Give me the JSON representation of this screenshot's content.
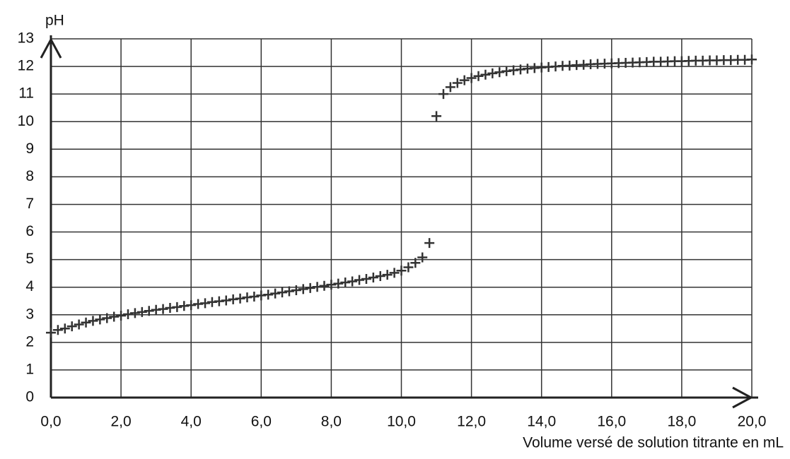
{
  "chart_data": {
    "type": "scatter",
    "y_label": "pH",
    "x_label": "Volume versé de solution titrante en mL",
    "x": [
      0.0,
      0.2,
      0.4,
      0.6,
      0.8,
      1.0,
      1.2,
      1.4,
      1.6,
      1.8,
      2.0,
      2.2,
      2.4,
      2.6,
      2.8,
      3.0,
      3.2,
      3.4,
      3.6,
      3.8,
      4.0,
      4.2,
      4.4,
      4.6,
      4.8,
      5.0,
      5.2,
      5.4,
      5.6,
      5.8,
      6.0,
      6.2,
      6.4,
      6.6,
      6.8,
      7.0,
      7.2,
      7.4,
      7.6,
      7.8,
      8.0,
      8.2,
      8.4,
      8.6,
      8.8,
      9.0,
      9.2,
      9.4,
      9.6,
      9.8,
      10.0,
      10.2,
      10.4,
      10.6,
      10.8,
      11.0,
      11.2,
      11.4,
      11.6,
      11.8,
      12.0,
      12.2,
      12.4,
      12.6,
      12.8,
      13.0,
      13.2,
      13.4,
      13.6,
      13.8,
      14.0,
      14.2,
      14.4,
      14.6,
      14.8,
      15.0,
      15.2,
      15.4,
      15.6,
      15.8,
      16.0,
      16.2,
      16.4,
      16.6,
      16.8,
      17.0,
      17.2,
      17.4,
      17.6,
      17.8,
      18.0,
      18.2,
      18.4,
      18.6,
      18.8,
      19.0,
      19.2,
      19.4,
      19.6,
      19.8,
      20.0
    ],
    "values": [
      2.35,
      2.45,
      2.5,
      2.58,
      2.65,
      2.72,
      2.78,
      2.83,
      2.88,
      2.93,
      2.97,
      3.02,
      3.06,
      3.1,
      3.14,
      3.18,
      3.21,
      3.25,
      3.28,
      3.32,
      3.35,
      3.39,
      3.42,
      3.46,
      3.49,
      3.52,
      3.56,
      3.59,
      3.63,
      3.66,
      3.7,
      3.73,
      3.77,
      3.81,
      3.85,
      3.89,
      3.93,
      3.97,
      4.01,
      4.05,
      4.09,
      4.13,
      4.17,
      4.21,
      4.26,
      4.3,
      4.35,
      4.4,
      4.45,
      4.52,
      4.6,
      4.72,
      4.88,
      5.08,
      5.6,
      10.2,
      11.0,
      11.25,
      11.4,
      11.5,
      11.58,
      11.65,
      11.7,
      11.75,
      11.79,
      11.83,
      11.86,
      11.89,
      11.92,
      11.94,
      11.96,
      11.98,
      12.0,
      12.02,
      12.03,
      12.05,
      12.06,
      12.08,
      12.09,
      12.1,
      12.11,
      12.12,
      12.13,
      12.14,
      12.15,
      12.16,
      12.17,
      12.17,
      12.18,
      12.19,
      12.19,
      12.2,
      12.21,
      12.21,
      12.22,
      12.22,
      12.23,
      12.23,
      12.24,
      12.24,
      12.25
    ],
    "color": "#333333",
    "xlim": [
      0,
      20
    ],
    "ylim": [
      0,
      13
    ],
    "xticks": [
      {
        "value": 0,
        "label": "0,0"
      },
      {
        "value": 2,
        "label": "2,0"
      },
      {
        "value": 4,
        "label": "4,0"
      },
      {
        "value": 6,
        "label": "6,0"
      },
      {
        "value": 8,
        "label": "8,0"
      },
      {
        "value": 10,
        "label": "10,0"
      },
      {
        "value": 12,
        "label": "12,0"
      },
      {
        "value": 14,
        "label": "14,0"
      },
      {
        "value": 16,
        "label": "16,0"
      },
      {
        "value": 18,
        "label": "18,0"
      },
      {
        "value": 20,
        "label": "20,0"
      }
    ],
    "yticks": [
      0,
      1,
      2,
      3,
      4,
      5,
      6,
      7,
      8,
      9,
      10,
      11,
      12,
      13
    ],
    "grid": true
  }
}
